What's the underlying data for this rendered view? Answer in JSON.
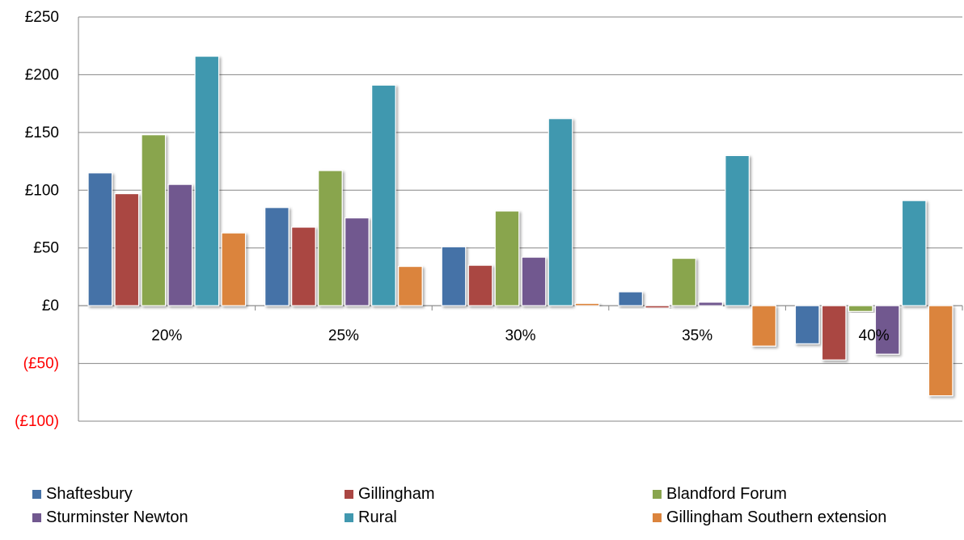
{
  "chart_data": {
    "type": "bar",
    "categories": [
      "20%",
      "25%",
      "30%",
      "35%",
      "40%"
    ],
    "series": [
      {
        "name": "Shaftesbury",
        "color": "#4572A7",
        "values": [
          115,
          85,
          51,
          12,
          -33
        ]
      },
      {
        "name": "Gillingham",
        "color": "#AA4643",
        "values": [
          97,
          68,
          35,
          -2,
          -47
        ]
      },
      {
        "name": "Blandford Forum",
        "color": "#89A54E",
        "values": [
          148,
          117,
          82,
          41,
          -5
        ]
      },
      {
        "name": "Sturminster Newton",
        "color": "#71588F",
        "values": [
          105,
          76,
          42,
          3,
          -42
        ]
      },
      {
        "name": "Rural",
        "color": "#4198AF",
        "values": [
          216,
          191,
          162,
          130,
          91
        ]
      },
      {
        "name": "Gillingham Southern extension",
        "color": "#DB843D",
        "values": [
          63,
          34,
          2,
          -35,
          -78
        ]
      }
    ],
    "ylim": [
      -100,
      250
    ],
    "yticks": [
      {
        "value": 250,
        "label": "£250",
        "color": "#000000"
      },
      {
        "value": 200,
        "label": "£200",
        "color": "#000000"
      },
      {
        "value": 150,
        "label": "£150",
        "color": "#000000"
      },
      {
        "value": 100,
        "label": "£100",
        "color": "#000000"
      },
      {
        "value": 50,
        "label": "£50",
        "color": "#000000"
      },
      {
        "value": 0,
        "label": "£0",
        "color": "#000000"
      },
      {
        "value": -50,
        "label": "(£50)",
        "color": "#FF0000"
      },
      {
        "value": -100,
        "label": "(£100)",
        "color": "#FF0000"
      }
    ],
    "grid": true,
    "legend_position": "bottom"
  }
}
